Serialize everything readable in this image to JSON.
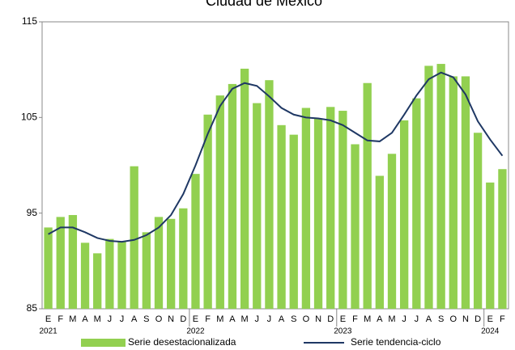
{
  "chart_data": {
    "type": "bar-line",
    "title": "Ciudad de México",
    "categories": [
      "E",
      "F",
      "M",
      "A",
      "M",
      "J",
      "J",
      "A",
      "S",
      "O",
      "N",
      "D",
      "E",
      "F",
      "M",
      "A",
      "M",
      "J",
      "J",
      "A",
      "S",
      "O",
      "N",
      "D",
      "E",
      "F",
      "M",
      "A",
      "M",
      "J",
      "J",
      "A",
      "S",
      "O",
      "N",
      "D",
      "E",
      "F"
    ],
    "years": [
      "2021",
      null,
      null,
      null,
      null,
      null,
      null,
      null,
      null,
      null,
      null,
      null,
      "2022",
      null,
      null,
      null,
      null,
      null,
      null,
      null,
      null,
      null,
      null,
      null,
      "2023",
      null,
      null,
      null,
      null,
      null,
      null,
      null,
      null,
      null,
      null,
      null,
      "2024",
      null
    ],
    "series": [
      {
        "name": "Serie desestacionalizada",
        "color": "#92d050",
        "kind": "bar",
        "values": [
          93.5,
          94.6,
          94.8,
          91.9,
          90.8,
          92.3,
          92.0,
          99.9,
          93.0,
          94.6,
          94.4,
          95.5,
          99.1,
          105.3,
          107.3,
          108.5,
          110.1,
          106.5,
          108.9,
          104.2,
          103.2,
          106.0,
          104.9,
          106.1,
          105.7,
          102.2,
          108.6,
          98.9,
          101.2,
          104.7,
          107.0,
          110.4,
          110.6,
          109.3,
          109.3,
          103.4,
          98.2,
          99.6
        ]
      },
      {
        "name": "Serie tendencia-ciclo",
        "color": "#1f3864",
        "kind": "line",
        "values": [
          92.8,
          93.5,
          93.5,
          93.0,
          92.4,
          92.1,
          92.0,
          92.2,
          92.7,
          93.5,
          94.8,
          97.0,
          100.0,
          103.3,
          106.2,
          108.0,
          108.6,
          108.3,
          107.2,
          106.0,
          105.3,
          105.0,
          104.9,
          104.7,
          104.2,
          103.4,
          102.6,
          102.5,
          103.4,
          105.3,
          107.3,
          109.0,
          109.7,
          109.2,
          107.4,
          104.6,
          102.7,
          101.0
        ]
      }
    ],
    "ylim": [
      85,
      115
    ],
    "yticks": [
      85,
      95,
      105,
      115
    ],
    "legend": "bottom"
  }
}
